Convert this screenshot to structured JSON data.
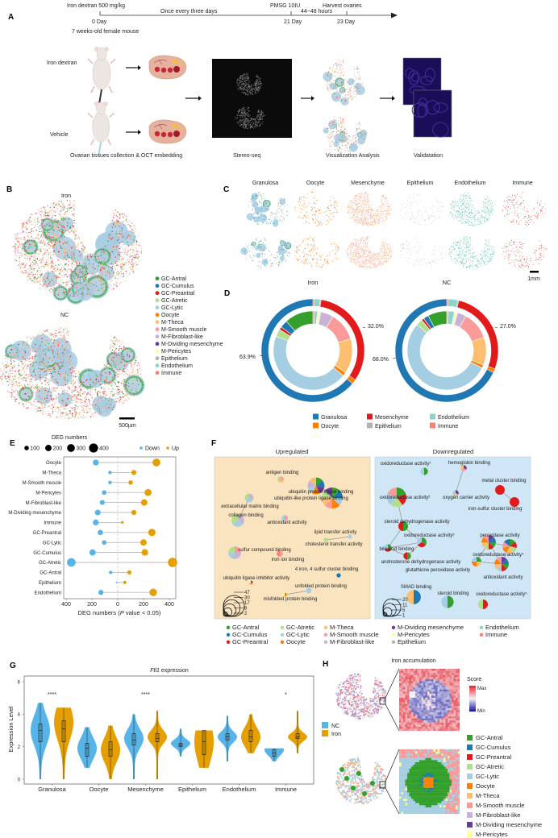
{
  "panel_labels": {
    "a": "A",
    "b": "B",
    "c": "C",
    "d": "D",
    "e": "E",
    "f": "F",
    "g": "G",
    "h": "H"
  },
  "timeline": {
    "dose": "Iron dextran 500 mg/kg",
    "frequency": "Once every three days",
    "pmsg": "PMSG 10IU",
    "interval": "44~48 hours",
    "harvest": "Harvest ovaries",
    "day0": "0 Day",
    "day21": "21 Day",
    "day23": "23 Day",
    "mouse": "7 weeks-old female mouse"
  },
  "workflow": {
    "group_iron": "Iron dextran",
    "group_vehicle": "Vehicle",
    "step1": "Ovarian tissues collection & OCT embedding",
    "step2": "Stereo-seq",
    "step3": "Visualization Analysis",
    "step4": "Validatation"
  },
  "celltypes": [
    {
      "name": "GC-Antral",
      "color": "#33a02c"
    },
    {
      "name": "GC-Cumulus",
      "color": "#1f78b4"
    },
    {
      "name": "GC-Preantral",
      "color": "#e31a1c"
    },
    {
      "name": "GC-Atretic",
      "color": "#b2df8a"
    },
    {
      "name": "GC-Lytic",
      "color": "#a6cee3"
    },
    {
      "name": "Oocyte",
      "color": "#ff7f00"
    },
    {
      "name": "M-Theca",
      "color": "#fdbf6f"
    },
    {
      "name": "M-Smooth muscle",
      "color": "#fb9a99"
    },
    {
      "name": "M-Fibroblast-like",
      "color": "#cab2d6"
    },
    {
      "name": "M-Dividing mesenchyme",
      "color": "#6a3d9a"
    },
    {
      "name": "M-Pericytes",
      "color": "#ffff99"
    },
    {
      "name": "Epithelium",
      "color": "#b3b3b3"
    },
    {
      "name": "Endothelium",
      "color": "#8dd3c7"
    },
    {
      "name": "Immune",
      "color": "#fb8072"
    }
  ],
  "panel_b": {
    "iron": "Iron",
    "nc": "NC",
    "scale": "500µm"
  },
  "panel_c": {
    "columns": [
      "Granulosa",
      "Oocyte",
      "Mesenchyme",
      "Epithelium",
      "Endothelium",
      "Immune"
    ],
    "scale": "1mm"
  },
  "panel_f": {
    "up_title": "Upregulated",
    "down_title": "Downregulated",
    "up_size_legend": [
      "47",
      "30",
      "17",
      "8",
      "2"
    ],
    "down_size_legend": [
      "20",
      "11",
      "5",
      "1"
    ],
    "up_nodes": [
      {
        "label": "antigen binding",
        "size": 4,
        "types": [
          7,
          6,
          3
        ]
      },
      {
        "label": "ubiquitin protein ligase binding",
        "size": 30,
        "types": [
          0,
          1,
          9,
          5,
          4,
          8,
          6
        ]
      },
      {
        "label": "ubiquitin-like protein ligase binding",
        "size": 47,
        "types": [
          0,
          1,
          4,
          5,
          7,
          6,
          3,
          9
        ]
      },
      {
        "label": "extracellular matrix binding",
        "size": 8,
        "types": [
          8,
          4,
          3
        ]
      },
      {
        "label": "collagen binding",
        "size": 17,
        "types": [
          8,
          4,
          3
        ]
      },
      {
        "label": "antioxidant activity",
        "size": 4,
        "types": [
          7,
          4
        ]
      },
      {
        "label": "lipid transfer activity",
        "size": 2,
        "types": [
          4
        ]
      },
      {
        "label": "cholesterol transfer activity",
        "size": 2,
        "types": [
          3
        ]
      },
      {
        "label": "sulfur compound binding",
        "size": 17,
        "types": [
          7,
          8,
          4,
          3
        ]
      },
      {
        "label": "iron ion binding",
        "size": 4,
        "types": [
          7,
          13
        ]
      },
      {
        "label": "4 iron, 4 sulfur cluster binding",
        "size": 2,
        "types": [
          1
        ]
      },
      {
        "label": "ubiquitin ligase inhibitor activity",
        "size": 2,
        "types": [
          9,
          5,
          6,
          10
        ]
      },
      {
        "label": "unfolded protein binding",
        "size": 3,
        "types": [
          4
        ]
      },
      {
        "label": "misfolded protein binding",
        "size": 2,
        "types": [
          5,
          10
        ]
      }
    ],
    "down_nodes": [
      {
        "label": "oxidoreductase activity¹",
        "size": 3,
        "types": [
          0,
          4
        ]
      },
      {
        "label": "hemoglobin binding",
        "size": 2,
        "types": [
          9,
          7,
          6
        ]
      },
      {
        "label": "metal cluster binding",
        "size": 5,
        "types": [
          2
        ]
      },
      {
        "label": "oxidoreductase activity²",
        "size": 20,
        "types": [
          0,
          2,
          3,
          4,
          7
        ]
      },
      {
        "label": "oxygen carrier activity",
        "size": 2,
        "types": [
          9,
          6,
          4
        ]
      },
      {
        "label": "iron-sulfur cluster binding",
        "size": 5,
        "types": [
          2
        ]
      },
      {
        "label": "steroid dehydrogenase activity",
        "size": 5,
        "types": [
          0,
          2
        ]
      },
      {
        "label": "oxidoreductase activity³",
        "size": 5,
        "types": [
          0,
          2,
          4
        ]
      },
      {
        "label": "bile acid binding",
        "size": 3,
        "types": [
          0,
          2,
          4
        ]
      },
      {
        "label": "androsterone dehydrogenase activity",
        "size": 3,
        "types": [
          0,
          2
        ]
      },
      {
        "label": "glutathione peroxidase activity",
        "size": 5,
        "types": [
          0,
          6,
          5,
          4
        ]
      },
      {
        "label": "peroxidase activity",
        "size": 11,
        "types": [
          9,
          1,
          0,
          2,
          3,
          6,
          5,
          7
        ]
      },
      {
        "label": "oxidoreductase activity⁴",
        "size": 11,
        "types": [
          0,
          2,
          3,
          6,
          5,
          7,
          1
        ]
      },
      {
        "label": "antioxidant activity",
        "size": 11,
        "types": [
          9,
          1,
          0,
          2,
          4,
          6,
          5,
          7
        ]
      },
      {
        "label": "SMAD binding",
        "size": 11,
        "types": [
          1,
          6
        ]
      },
      {
        "label": "steroid binding",
        "size": 8,
        "types": [
          0,
          4
        ]
      },
      {
        "label": "oxidoreductase activity⁵",
        "size": 5,
        "types": [
          2,
          3
        ]
      }
    ]
  },
  "panel_h": {
    "title": "Iron accumulation",
    "score_label": "Score",
    "max_label": "Max",
    "min_label": "Min",
    "score_colors": {
      "max": "#e8202a",
      "mid": "#f4f0f6",
      "min": "#0a0a9a"
    }
  },
  "chart_data": [
    {
      "id": "D-iron",
      "type": "pie",
      "title": "Iron",
      "outer": {
        "labels": [
          "Immune",
          "Endothelium",
          "Epithelium",
          "Mesenchyme",
          "Oocyte",
          "Granulosa"
        ],
        "colors": [
          "#fb8072",
          "#8dd3c7",
          "#b3b3b3",
          "#e31a1c",
          "#ff7f00",
          "#1f78b4"
        ],
        "values": [
          0.5,
          1.8,
          0.3,
          32.0,
          1.5,
          63.9
        ]
      },
      "inner": {
        "types": [
          13,
          12,
          11,
          10,
          9,
          8,
          7,
          6,
          5,
          4,
          3,
          2,
          1,
          0
        ],
        "values": [
          0.7,
          1.2,
          0.3,
          0.8,
          0.3,
          5,
          11.5,
          14,
          1.5,
          44,
          3,
          1.2,
          3,
          11.5
        ]
      },
      "annotations": [
        "32.0%",
        "63.9%"
      ]
    },
    {
      "id": "D-nc",
      "type": "pie",
      "title": "NC",
      "outer": {
        "labels": [
          "Immune",
          "Endothelium",
          "Epithelium",
          "Mesenchyme",
          "Oocyte",
          "Granulosa"
        ],
        "colors": [
          "#fb8072",
          "#8dd3c7",
          "#b3b3b3",
          "#e31a1c",
          "#ff7f00",
          "#1f78b4"
        ],
        "values": [
          0.5,
          3.0,
          0.3,
          27.0,
          1.2,
          68.0
        ]
      },
      "inner": {
        "types": [
          13,
          12,
          11,
          10,
          9,
          8,
          7,
          6,
          5,
          4,
          3,
          2,
          1,
          0
        ],
        "values": [
          0.5,
          2.5,
          0.3,
          0.8,
          0.2,
          3.5,
          11,
          11,
          1.2,
          52,
          2.5,
          1,
          2,
          7.5
        ]
      },
      "annotations": [
        "27.0%",
        "68.0%"
      ]
    },
    {
      "id": "D-legend",
      "type": "legend",
      "items": [
        {
          "name": "Granulosa",
          "color": "#1f78b4"
        },
        {
          "name": "Oocyte",
          "color": "#ff7f00"
        },
        {
          "name": "Mesenchyme",
          "color": "#e31a1c"
        },
        {
          "name": "Epithelium",
          "color": "#b3b3b3"
        },
        {
          "name": "Endothelium",
          "color": "#8dd3c7"
        },
        {
          "name": "Immune",
          "color": "#fb8072"
        }
      ]
    },
    {
      "id": "E",
      "type": "scatter",
      "title": "DEG numbers",
      "xlabel": "DEG numbers (P value < 0.05)",
      "xlabel_parts": [
        "DEG numbers (",
        "P",
        " value < 0.05)"
      ],
      "xlim": [
        -400,
        400
      ],
      "xticks": [
        {
          "v": -400,
          "label": "400"
        },
        {
          "v": -200,
          "label": "200"
        },
        {
          "v": 0,
          "label": "0"
        },
        {
          "v": 200,
          "label": "200"
        },
        {
          "v": 400,
          "label": "400"
        }
      ],
      "size_legend": [
        {
          "v": 100,
          "label": "100"
        },
        {
          "v": 200,
          "label": "200"
        },
        {
          "v": 300,
          "label": "300"
        },
        {
          "v": 400,
          "label": "400"
        }
      ],
      "series": [
        {
          "name": "Down",
          "color": "#56b4e9"
        },
        {
          "name": "Up",
          "color": "#e69f00"
        }
      ],
      "categories": [
        "Oocyte",
        "M-Theca",
        "M-Smooth muscle",
        "M-Pericytes",
        "M-Fibroblast-like",
        "M-Dividing mesenchyme",
        "Immune",
        "GC-Preantral",
        "GC-Lytic",
        "GC-Cumulus",
        "GC-Atretic",
        "GC-Antral",
        "Epithelium",
        "Endothelium"
      ],
      "down": [
        170,
        60,
        60,
        105,
        120,
        155,
        170,
        135,
        105,
        195,
        360,
        55,
        10,
        130
      ],
      "up": [
        300,
        125,
        100,
        235,
        205,
        125,
        35,
        265,
        200,
        210,
        425,
        90,
        55,
        275
      ]
    },
    {
      "id": "G",
      "type": "violin",
      "gene": "Ftl1",
      "title_suffix": " expression",
      "ylabel": "Expression Level",
      "ylim": [
        0,
        6
      ],
      "yticks": [
        "0",
        "2",
        "4",
        "6"
      ],
      "series": [
        {
          "name": "NC",
          "color": "#56b4e9"
        },
        {
          "name": "Iron",
          "color": "#e69f00"
        }
      ],
      "categories": [
        "Granulosa",
        "Oocyte",
        "Mesenchyme",
        "Epithelium",
        "Endothelium",
        "Immune"
      ],
      "significance": [
        "****",
        "",
        "****",
        "",
        "",
        "*"
      ],
      "stats_keys": [
        "min",
        "q1",
        "median",
        "q3",
        "max",
        "mode"
      ],
      "NC": [
        [
          0,
          2.3,
          3.0,
          3.4,
          4.7,
          3.0
        ],
        [
          0.7,
          1.4,
          1.9,
          2.2,
          3.2,
          1.9
        ],
        [
          0,
          2.1,
          2.4,
          2.8,
          4.0,
          2.5
        ],
        [
          1.4,
          2.0,
          2.1,
          2.2,
          3.1,
          2.2
        ],
        [
          1.1,
          2.4,
          2.6,
          2.8,
          3.9,
          2.6
        ],
        [
          1.1,
          1.4,
          1.6,
          1.8,
          1.9,
          1.8
        ]
      ],
      "Iron": [
        [
          0,
          2.3,
          3.1,
          3.6,
          4.4,
          3.5
        ],
        [
          0,
          1.4,
          1.8,
          2.3,
          3.3,
          1.8
        ],
        [
          0,
          2.3,
          2.5,
          2.8,
          4.2,
          2.6
        ],
        [
          0.7,
          1.5,
          2.3,
          3.0,
          3.0,
          2.3
        ],
        [
          1.6,
          2.3,
          2.6,
          3.0,
          4.0,
          2.6
        ],
        [
          1.6,
          2.5,
          2.6,
          2.8,
          4.2,
          2.6
        ]
      ]
    }
  ]
}
